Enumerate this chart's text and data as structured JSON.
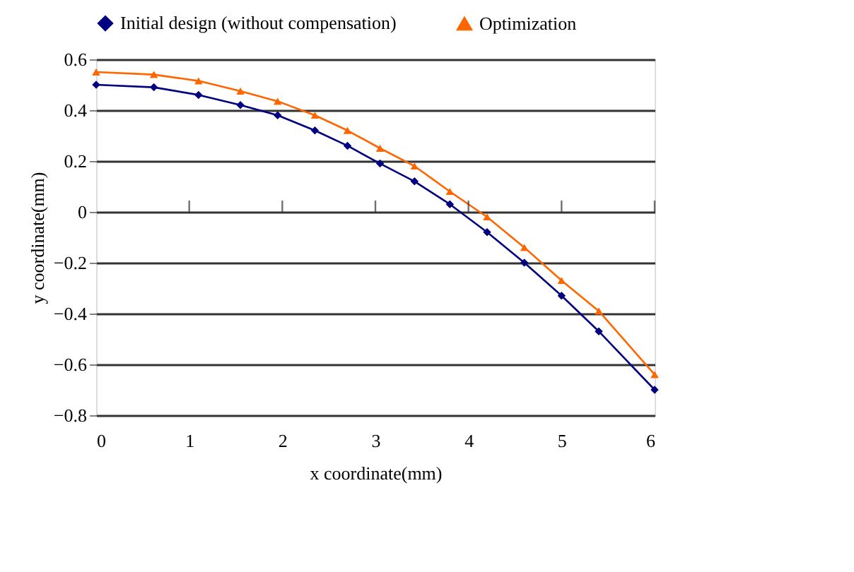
{
  "chart_data": {
    "type": "line",
    "xlabel": "x coordinate(mm)",
    "ylabel": "y coordinate(mm)",
    "x": [
      0,
      0.62,
      1.1,
      1.55,
      1.95,
      2.35,
      2.7,
      3.05,
      3.42,
      3.8,
      4.2,
      4.6,
      5.0,
      5.4,
      6.0
    ],
    "series": [
      {
        "name": "Initial design (without compensation)",
        "color": "#000080",
        "marker": "diamond",
        "values": [
          0.5,
          0.49,
          0.46,
          0.42,
          0.38,
          0.32,
          0.26,
          0.19,
          0.12,
          0.03,
          -0.08,
          -0.2,
          -0.33,
          -0.47,
          -0.7
        ]
      },
      {
        "name": "Optimization",
        "color": "#ff6600",
        "marker": "triangle",
        "values": [
          0.55,
          0.54,
          0.515,
          0.475,
          0.435,
          0.38,
          0.32,
          0.25,
          0.18,
          0.08,
          -0.02,
          -0.14,
          -0.27,
          -0.39,
          -0.64
        ]
      }
    ],
    "xlim": [
      0,
      6
    ],
    "xticks": [
      0,
      1,
      2,
      3,
      4,
      5,
      6
    ],
    "ylim": [
      -0.8,
      0.6
    ],
    "yticks": [
      -0.8,
      -0.6,
      -0.4,
      -0.2,
      0,
      0.2,
      0.4,
      0.6
    ],
    "grid": "y",
    "legend": "top",
    "line_style": "solid"
  }
}
